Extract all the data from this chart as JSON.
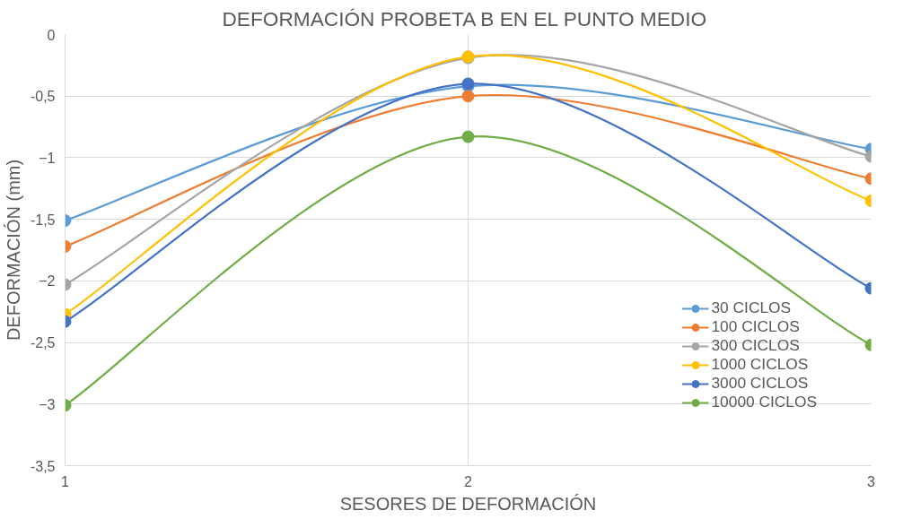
{
  "chart_data": {
    "type": "line",
    "title": "DEFORMACIÓN  PROBETA B EN EL PUNTO MEDIO",
    "xlabel": "SESORES DE DEFORMACIÓN",
    "ylabel": "DEFORMACIÓN (mm)",
    "x": [
      1,
      2,
      3
    ],
    "series": [
      {
        "name": "30 CICLOS",
        "color": "#5b9bd5",
        "values": [
          -1.51,
          -0.42,
          -0.93
        ]
      },
      {
        "name": "100 CICLOS",
        "color": "#ed7d31",
        "values": [
          -1.72,
          -0.5,
          -1.17
        ]
      },
      {
        "name": "300 CICLOS",
        "color": "#a5a5a5",
        "values": [
          -2.03,
          -0.19,
          -0.99
        ]
      },
      {
        "name": "1000 CICLOS",
        "color": "#ffc000",
        "values": [
          -2.27,
          -0.18,
          -1.35
        ]
      },
      {
        "name": "3000 CICLOS",
        "color": "#4472c4",
        "values": [
          -2.33,
          -0.4,
          -2.06
        ]
      },
      {
        "name": "10000 CICLOS",
        "color": "#70ad47",
        "values": [
          -3.01,
          -0.83,
          -2.52
        ]
      }
    ],
    "xlim": [
      1,
      3
    ],
    "xticks": [
      1,
      2,
      3
    ],
    "ylim": [
      -3.5,
      0
    ],
    "yticks": [
      {
        "value": -3.5,
        "label": "-3,5"
      },
      -3,
      {
        "value": -2.5,
        "label": "-2,5"
      },
      -2,
      {
        "value": -1.5,
        "label": "-1,5"
      },
      -1,
      {
        "value": -0.5,
        "label": "-0,5"
      },
      0
    ],
    "grid": true,
    "legend": "bottom right",
    "marker": "circle",
    "line_style": "solid"
  }
}
